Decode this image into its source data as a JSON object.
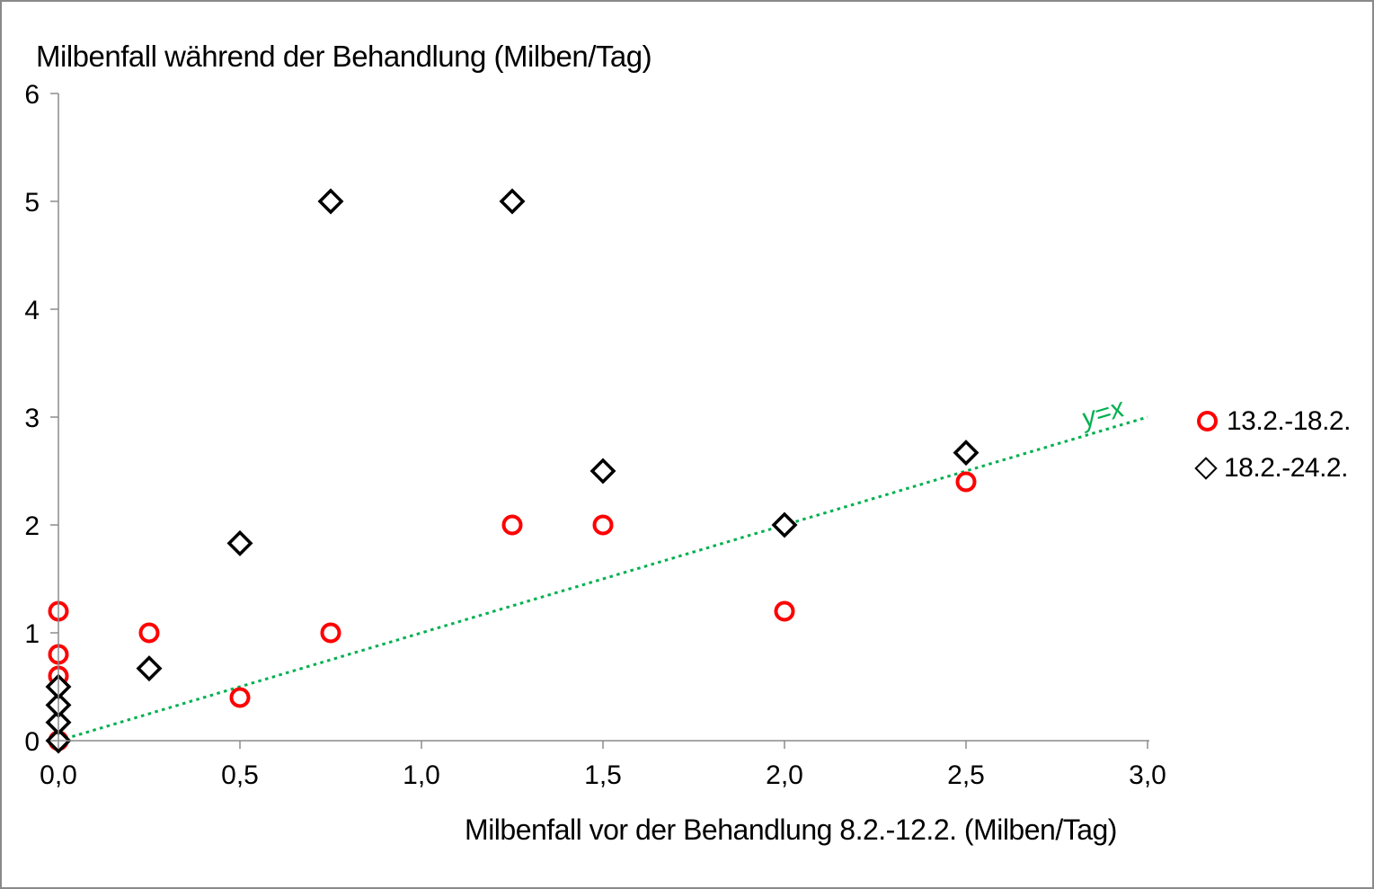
{
  "chart_data": {
    "type": "scatter",
    "title": "Milbenfall während der Behandlung (Milben/Tag)",
    "xlabel": "Milbenfall vor der Behandlung 8.2.-12.2. (Milben/Tag)",
    "grid": false,
    "legend_position": "right",
    "x_axis": {
      "min": 0,
      "max": 3,
      "tick_step": 0.5,
      "tick_labels": [
        "0,0",
        "0,5",
        "1,0",
        "1,5",
        "2,0",
        "2,5",
        "3,0"
      ]
    },
    "y_axis": {
      "min": 0,
      "max": 6,
      "tick_step": 1,
      "tick_labels": [
        "0",
        "1",
        "2",
        "3",
        "4",
        "5",
        "6"
      ]
    },
    "axis_color": "#8c8c8c",
    "series": [
      {
        "name": "13.2.-18.2.",
        "marker": "circle",
        "color": "#FF0000",
        "points": [
          [
            0,
            0
          ],
          [
            0,
            0.6
          ],
          [
            0,
            0.8
          ],
          [
            0,
            1.2
          ],
          [
            0.25,
            1.0
          ],
          [
            0.5,
            0.4
          ],
          [
            0.75,
            1.0
          ],
          [
            1.25,
            2.0
          ],
          [
            1.5,
            2.0
          ],
          [
            2.0,
            1.2
          ],
          [
            2.5,
            2.4
          ]
        ]
      },
      {
        "name": "18.2.-24.2.",
        "marker": "diamond",
        "color": "#000000",
        "points": [
          [
            0,
            0
          ],
          [
            0,
            0.17
          ],
          [
            0,
            0.33
          ],
          [
            0,
            0.5
          ],
          [
            0.25,
            0.67
          ],
          [
            0.5,
            1.83
          ],
          [
            0.75,
            5.0
          ],
          [
            1.25,
            5.0
          ],
          [
            1.5,
            2.5
          ],
          [
            2.0,
            2.0
          ],
          [
            2.5,
            2.67
          ]
        ]
      }
    ],
    "reference_line": {
      "label": "y=x",
      "from": [
        0,
        0
      ],
      "to": [
        3,
        3
      ],
      "color": "#00B050",
      "style": "dotted"
    }
  }
}
